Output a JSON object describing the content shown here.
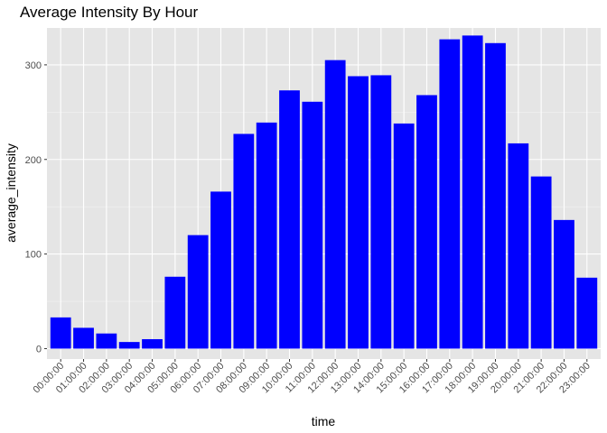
{
  "chart_data": {
    "type": "bar",
    "title": "Average Intensity By Hour",
    "xlabel": "time",
    "ylabel": "average_intensity",
    "categories": [
      "00:00:00",
      "01:00:00",
      "02:00:00",
      "03:00:00",
      "04:00:00",
      "05:00:00",
      "06:00:00",
      "07:00:00",
      "08:00:00",
      "09:00:00",
      "10:00:00",
      "11:00:00",
      "12:00:00",
      "13:00:00",
      "14:00:00",
      "15:00:00",
      "16:00:00",
      "17:00:00",
      "18:00:00",
      "19:00:00",
      "20:00:00",
      "21:00:00",
      "22:00:00",
      "23:00:00"
    ],
    "values": [
      33,
      22,
      16,
      7,
      10,
      76,
      120,
      166,
      227,
      239,
      273,
      261,
      305,
      288,
      289,
      238,
      268,
      327,
      331,
      323,
      217,
      182,
      136,
      75
    ],
    "ylim": [
      -11,
      339
    ],
    "yticks": [
      0,
      100,
      200,
      300
    ],
    "bar_color": "#0000ff",
    "panel_color": "#e5e5e5",
    "grid": true
  }
}
